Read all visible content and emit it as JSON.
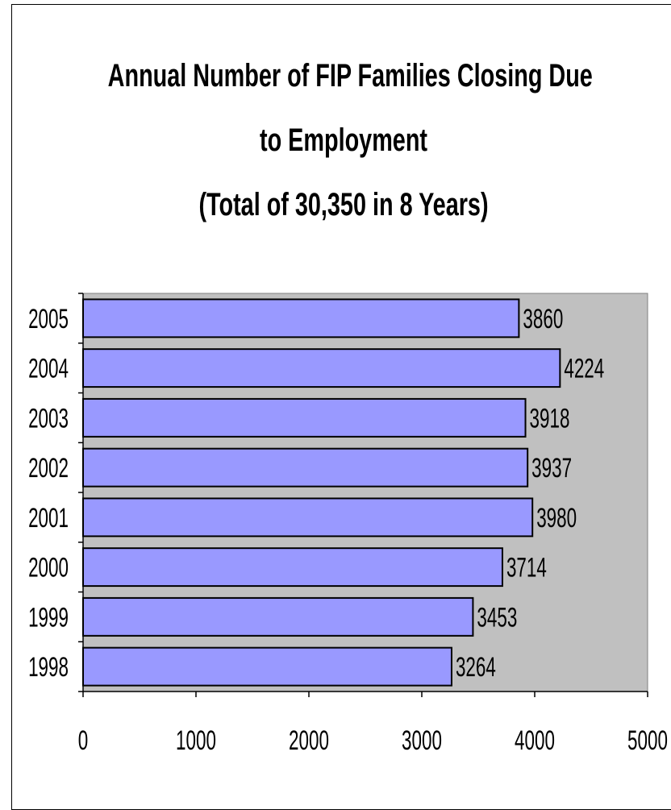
{
  "chart_data": {
    "type": "bar",
    "orientation": "horizontal",
    "title_lines": [
      "Annual Number of FIP Families Closing Due",
      "to Employment",
      "(Total of 30,350 in 8 Years)"
    ],
    "categories": [
      "2005",
      "2004",
      "2003",
      "2002",
      "2001",
      "2000",
      "1999",
      "1998"
    ],
    "values": [
      3860,
      4224,
      3918,
      3937,
      3980,
      3714,
      3453,
      3264
    ],
    "x_ticks": [
      "0",
      "1000",
      "2000",
      "3000",
      "4000",
      "5000"
    ],
    "xlim": [
      0,
      5000
    ],
    "xlabel": "",
    "ylabel": "",
    "grid": false,
    "legend": "none",
    "data_labels": true,
    "colors": {
      "bar_fill": "#9999ff",
      "bar_stroke": "#000000",
      "plot_background": "#c0c0c0",
      "text": "#000000"
    }
  }
}
